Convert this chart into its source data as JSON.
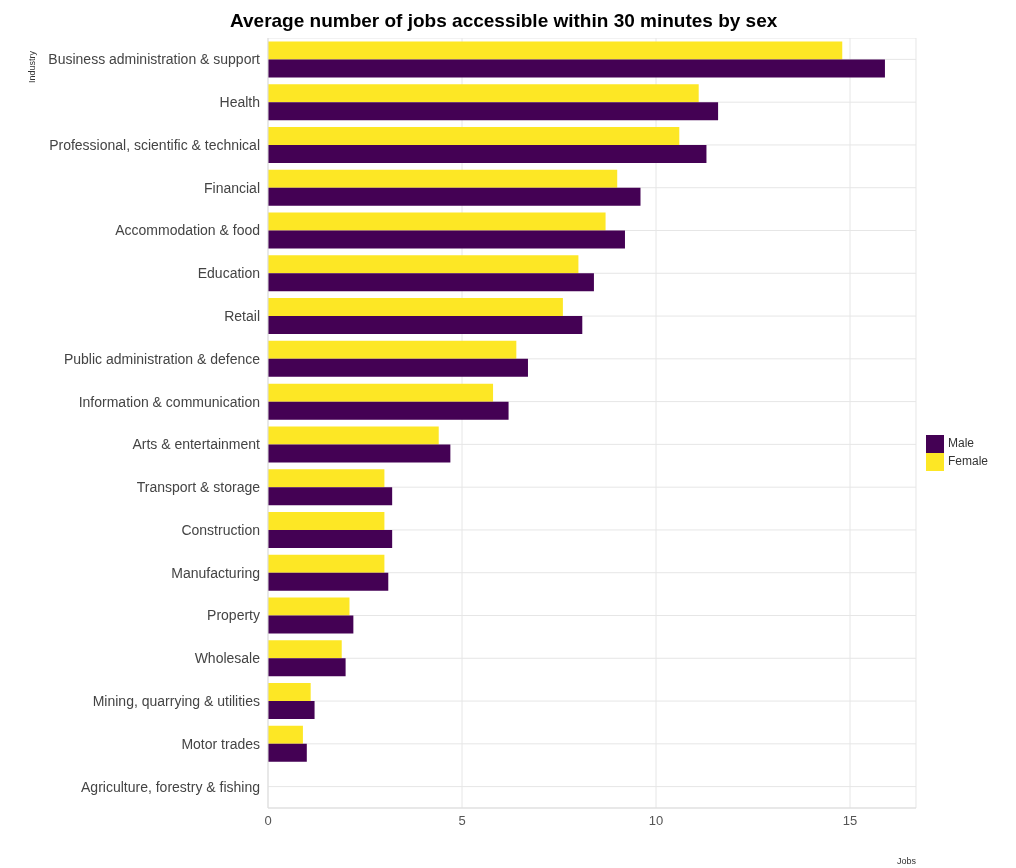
{
  "chart_data": {
    "type": "bar",
    "orientation": "horizontal",
    "title": "Average number of jobs accessible within 30 minutes by sex",
    "xlabel": "Jobs",
    "ylabel": "Industry",
    "categories": [
      "Business administration & support",
      "Health",
      "Professional, scientific & technical",
      "Financial",
      "Accommodation & food",
      "Education",
      "Retail",
      "Public administration & defence",
      "Information & communication",
      "Arts & entertainment",
      "Transport & storage",
      "Construction",
      "Manufacturing",
      "Property",
      "Wholesale",
      "Mining, quarrying & utilities",
      "Motor trades",
      "Agriculture, forestry & fishing"
    ],
    "series": [
      {
        "name": "Male",
        "color": "#440154",
        "values": [
          15.9,
          11.6,
          11.3,
          9.6,
          9.2,
          8.4,
          8.1,
          6.7,
          6.2,
          4.7,
          3.2,
          3.2,
          3.1,
          2.2,
          2.0,
          1.2,
          1.0,
          null
        ]
      },
      {
        "name": "Female",
        "color": "#fde725",
        "values": [
          14.8,
          11.1,
          10.6,
          9.0,
          8.7,
          8.0,
          7.6,
          6.4,
          5.8,
          4.4,
          3.0,
          3.0,
          3.0,
          2.1,
          1.9,
          1.1,
          0.9,
          null
        ]
      }
    ],
    "xlim": [
      0,
      16.7
    ],
    "xticks": [
      0,
      5,
      10,
      15
    ],
    "grid": true,
    "legend": "right"
  }
}
